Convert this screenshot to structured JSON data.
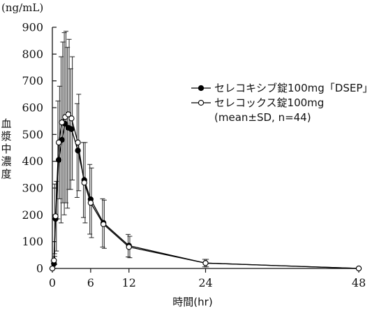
{
  "chart_data": {
    "type": "line",
    "unit_label": "(ng/mL)",
    "ylabel": "血漿中濃度",
    "xlabel": "時間(hr)",
    "xlim": [
      0,
      48
    ],
    "ylim": [
      0,
      900
    ],
    "x_ticks": [
      0,
      6,
      12,
      24,
      48
    ],
    "y_ticks": [
      0,
      100,
      200,
      300,
      400,
      500,
      600,
      700,
      800,
      900
    ],
    "grid": false,
    "legend_position": "top-right",
    "series": [
      {
        "name": "セレコキシブ錠100mg「DSEP」",
        "marker": "filled-circle",
        "color": "#000000",
        "x": [
          0,
          0.25,
          0.5,
          1,
          1.5,
          2,
          2.5,
          3,
          4,
          5,
          6,
          8,
          12,
          24,
          48
        ],
        "y": [
          0,
          18,
          185,
          405,
          480,
          540,
          525,
          520,
          440,
          330,
          258,
          170,
          85,
          20,
          0
        ],
        "sd": [
          0,
          10,
          130,
          220,
          310,
          340,
          300,
          225,
          175,
          140,
          130,
          90,
          42,
          14,
          1
        ]
      },
      {
        "name": "セレコックス錠100mg",
        "marker": "open-circle",
        "color": "#000000",
        "x": [
          0,
          0.25,
          0.5,
          1,
          1.5,
          2,
          2.5,
          3,
          4,
          5,
          6,
          8,
          12,
          24,
          48
        ],
        "y": [
          0,
          30,
          195,
          470,
          545,
          565,
          575,
          560,
          470,
          320,
          245,
          165,
          80,
          20,
          0
        ],
        "sd": [
          0,
          15,
          130,
          210,
          300,
          320,
          280,
          230,
          180,
          150,
          130,
          90,
          40,
          14,
          1
        ]
      }
    ],
    "legend_note": "(mean±SD, n=44)"
  }
}
